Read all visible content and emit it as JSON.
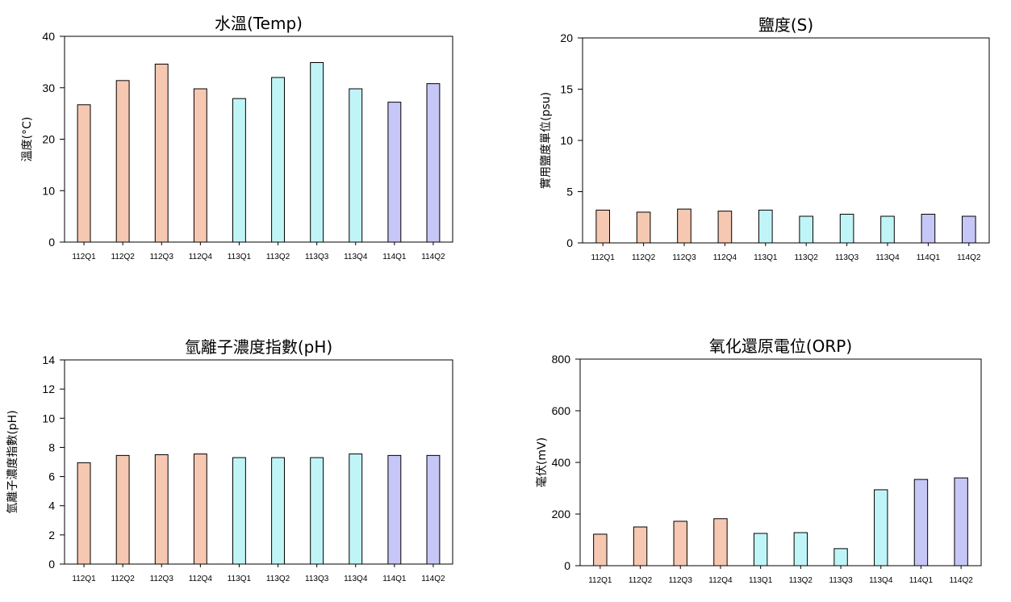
{
  "colors": {
    "group_112": "#f6c8b1",
    "group_113": "#c0f5f7",
    "group_114": "#c6c6f7",
    "bar_stroke": "#000000",
    "axis": "#000000"
  },
  "chart_data": [
    {
      "type": "bar",
      "title": "水溫(Temp)",
      "ylabel": "溫度(°C)",
      "xlabel": "",
      "categories": [
        "112Q1",
        "112Q2",
        "112Q3",
        "112Q4",
        "113Q1",
        "113Q2",
        "113Q3",
        "113Q4",
        "114Q1",
        "114Q2"
      ],
      "values": [
        26.7,
        31.4,
        34.6,
        29.8,
        27.9,
        32.0,
        34.9,
        29.8,
        27.2,
        30.8
      ],
      "ylim": [
        0,
        40
      ],
      "yticks": [
        0,
        10,
        20,
        30,
        40
      ],
      "grid": false,
      "legend": "none"
    },
    {
      "type": "bar",
      "title": "鹽度(S)",
      "ylabel": "實用鹽度單位(psu)",
      "xlabel": "",
      "categories": [
        "112Q1",
        "112Q2",
        "112Q3",
        "112Q4",
        "113Q1",
        "113Q2",
        "113Q3",
        "113Q4",
        "114Q1",
        "114Q2"
      ],
      "values": [
        3.2,
        3.0,
        3.3,
        3.1,
        3.2,
        2.6,
        2.8,
        2.6,
        2.8,
        2.6
      ],
      "ylim": [
        0,
        20
      ],
      "yticks": [
        0,
        5,
        10,
        15,
        20
      ],
      "grid": false,
      "legend": "none"
    },
    {
      "type": "bar",
      "title": "氫離子濃度指數(pH)",
      "ylabel": "氫離子濃度指數(pH)",
      "xlabel": "",
      "categories": [
        "112Q1",
        "112Q2",
        "112Q3",
        "112Q4",
        "113Q1",
        "113Q2",
        "113Q3",
        "113Q4",
        "114Q1",
        "114Q2"
      ],
      "values": [
        6.95,
        7.45,
        7.5,
        7.55,
        7.3,
        7.3,
        7.3,
        7.55,
        7.45,
        7.45
      ],
      "ylim": [
        0,
        14
      ],
      "yticks": [
        0,
        2,
        4,
        6,
        8,
        10,
        12,
        14
      ],
      "grid": false,
      "legend": "none"
    },
    {
      "type": "bar",
      "title": "氧化還原電位(ORP)",
      "ylabel": "毫伏(mV)",
      "xlabel": "",
      "categories": [
        "112Q1",
        "112Q2",
        "112Q3",
        "112Q4",
        "113Q1",
        "113Q2",
        "113Q3",
        "113Q4",
        "114Q1",
        "114Q2"
      ],
      "values": [
        122,
        150,
        172,
        182,
        125,
        128,
        66,
        294,
        334,
        340
      ],
      "ylim": [
        0,
        800
      ],
      "yticks": [
        0,
        200,
        400,
        600,
        800
      ],
      "grid": false,
      "legend": "none"
    }
  ]
}
